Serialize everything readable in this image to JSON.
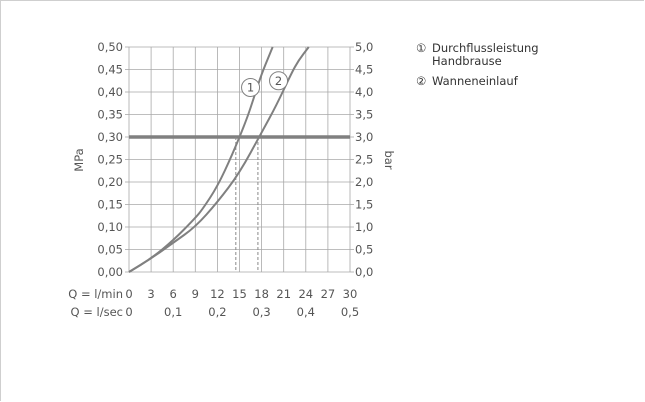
{
  "chart_data": {
    "type": "line",
    "ylabel_left": "MPa",
    "ylabel_right": "bar",
    "y_left": {
      "ticks": [
        "0,00",
        "0,05",
        "0,10",
        "0,15",
        "0,20",
        "0,25",
        "0,30",
        "0,35",
        "0,40",
        "0,45",
        "0,50"
      ],
      "range": [
        0,
        0.5
      ]
    },
    "y_right": {
      "ticks": [
        "0,0",
        "0,5",
        "1,0",
        "1,5",
        "2,0",
        "2,5",
        "3,0",
        "3,5",
        "4,0",
        "4,5",
        "5,0"
      ],
      "range": [
        0,
        5
      ]
    },
    "x_lmin": {
      "label": "Q = l/min",
      "ticks": [
        "0",
        "3",
        "6",
        "9",
        "12",
        "15",
        "18",
        "21",
        "24",
        "27",
        "30"
      ],
      "range": [
        0,
        30
      ]
    },
    "x_lsec": {
      "label": "Q = l/sec",
      "ticks": [
        "0",
        "0,1",
        "0,2",
        "0,3",
        "0,4",
        "0,5"
      ]
    },
    "reference_line": {
      "y": 0.3,
      "color": "#808080"
    },
    "markers": [
      {
        "x": 14.5
      },
      {
        "x": 17.5
      }
    ],
    "series": [
      {
        "id": "1",
        "marker": "1",
        "color": "#808080",
        "points": [
          [
            0,
            0
          ],
          [
            3,
            0.03
          ],
          [
            6,
            0.07
          ],
          [
            9,
            0.12
          ],
          [
            10,
            0.14
          ],
          [
            12,
            0.19
          ],
          [
            14,
            0.26
          ],
          [
            16,
            0.34
          ],
          [
            17,
            0.39
          ],
          [
            18,
            0.44
          ],
          [
            19,
            0.48
          ],
          [
            19.5,
            0.5
          ]
        ]
      },
      {
        "id": "2",
        "marker": "2",
        "color": "#808080",
        "points": [
          [
            0,
            0
          ],
          [
            3,
            0.03
          ],
          [
            6,
            0.065
          ],
          [
            9,
            0.1
          ],
          [
            12,
            0.155
          ],
          [
            15,
            0.22
          ],
          [
            18,
            0.31
          ],
          [
            20,
            0.37
          ],
          [
            22,
            0.44
          ],
          [
            23,
            0.47
          ],
          [
            24.4,
            0.5
          ]
        ]
      }
    ],
    "grid": true
  },
  "legend": [
    {
      "symbol": "①",
      "text": "Durchflussleistung Handbrause"
    },
    {
      "symbol": "②",
      "text": "Wanneneinlauf"
    }
  ]
}
